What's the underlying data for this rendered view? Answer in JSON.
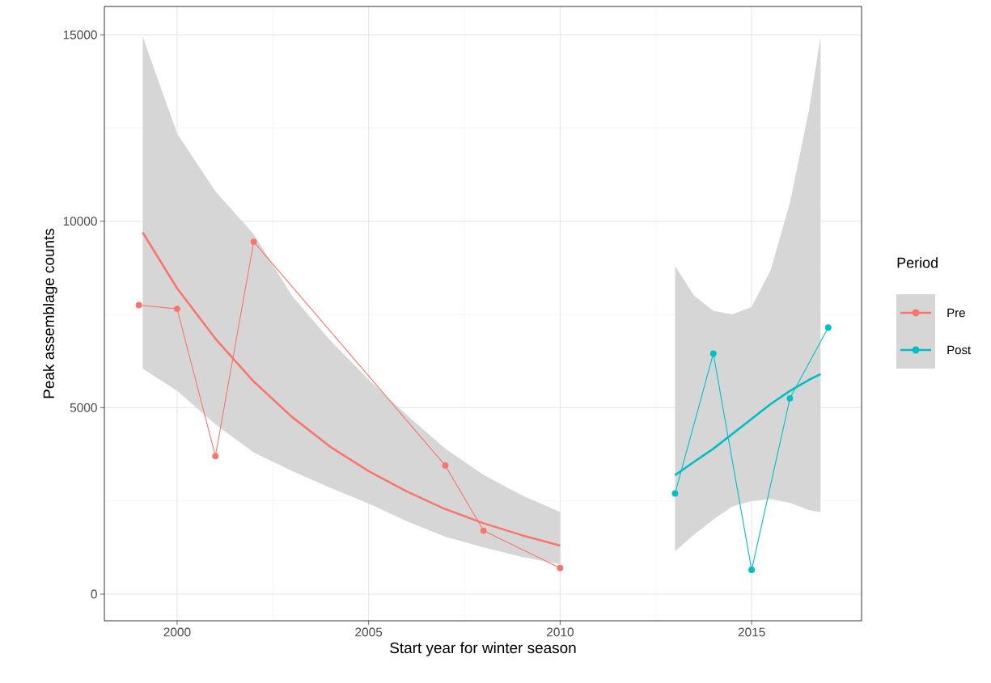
{
  "chart_data": {
    "type": "line",
    "xlabel": "Start year for winter season",
    "ylabel": "Peak assemblage counts",
    "legend_title": "Period",
    "xlim": [
      1998.1,
      2017.87
    ],
    "ylim": [
      -715,
      15760
    ],
    "xticks": [
      2000,
      2005,
      2010,
      2015
    ],
    "yticks": [
      0,
      5000,
      10000,
      15000
    ],
    "grid": true,
    "legend": "right",
    "marker": "circle",
    "series": [
      {
        "color": "#f8766d",
        "marker": "none",
        "x": [
          1999.1,
          2000,
          2001,
          2002,
          2003,
          2004,
          2005,
          2006,
          2007,
          2008,
          2009,
          2010
        ],
        "values": [
          9700,
          8200,
          6850,
          5700,
          4750,
          3950,
          3300,
          2750,
          2280,
          1900,
          1580,
          1300
        ],
        "upper": [
          14950,
          12350,
          10800,
          9650,
          8000,
          6800,
          5750,
          4800,
          3900,
          3200,
          2650,
          2200
        ],
        "lower": [
          6050,
          5450,
          4550,
          3800,
          3300,
          2850,
          2430,
          1950,
          1540,
          1250,
          1000,
          800
        ]
      },
      {
        "color": "#00bfc4",
        "marker": "none",
        "x": [
          2013,
          2013.5,
          2014,
          2014.5,
          2015,
          2015.5,
          2016,
          2016.5,
          2016.8
        ],
        "values": [
          3190,
          3550,
          3900,
          4300,
          4700,
          5100,
          5450,
          5750,
          5900
        ],
        "upper": [
          8800,
          8000,
          7600,
          7500,
          7700,
          8700,
          10500,
          13000,
          14950
        ],
        "lower": [
          1150,
          1600,
          2000,
          2350,
          2500,
          2550,
          2450,
          2250,
          2200
        ]
      },
      {
        "name": "Pre",
        "color": "#f8766d",
        "x": [
          1999,
          2000,
          2001,
          2002,
          2007,
          2008,
          2010
        ],
        "values": [
          7750,
          7650,
          3700,
          9450,
          3450,
          1700,
          700
        ]
      },
      {
        "name": "Post",
        "color": "#00bfc4",
        "x": [
          2013,
          2014,
          2015,
          2016,
          2017
        ],
        "values": [
          2700,
          6450,
          650,
          5250,
          7150
        ]
      }
    ]
  }
}
